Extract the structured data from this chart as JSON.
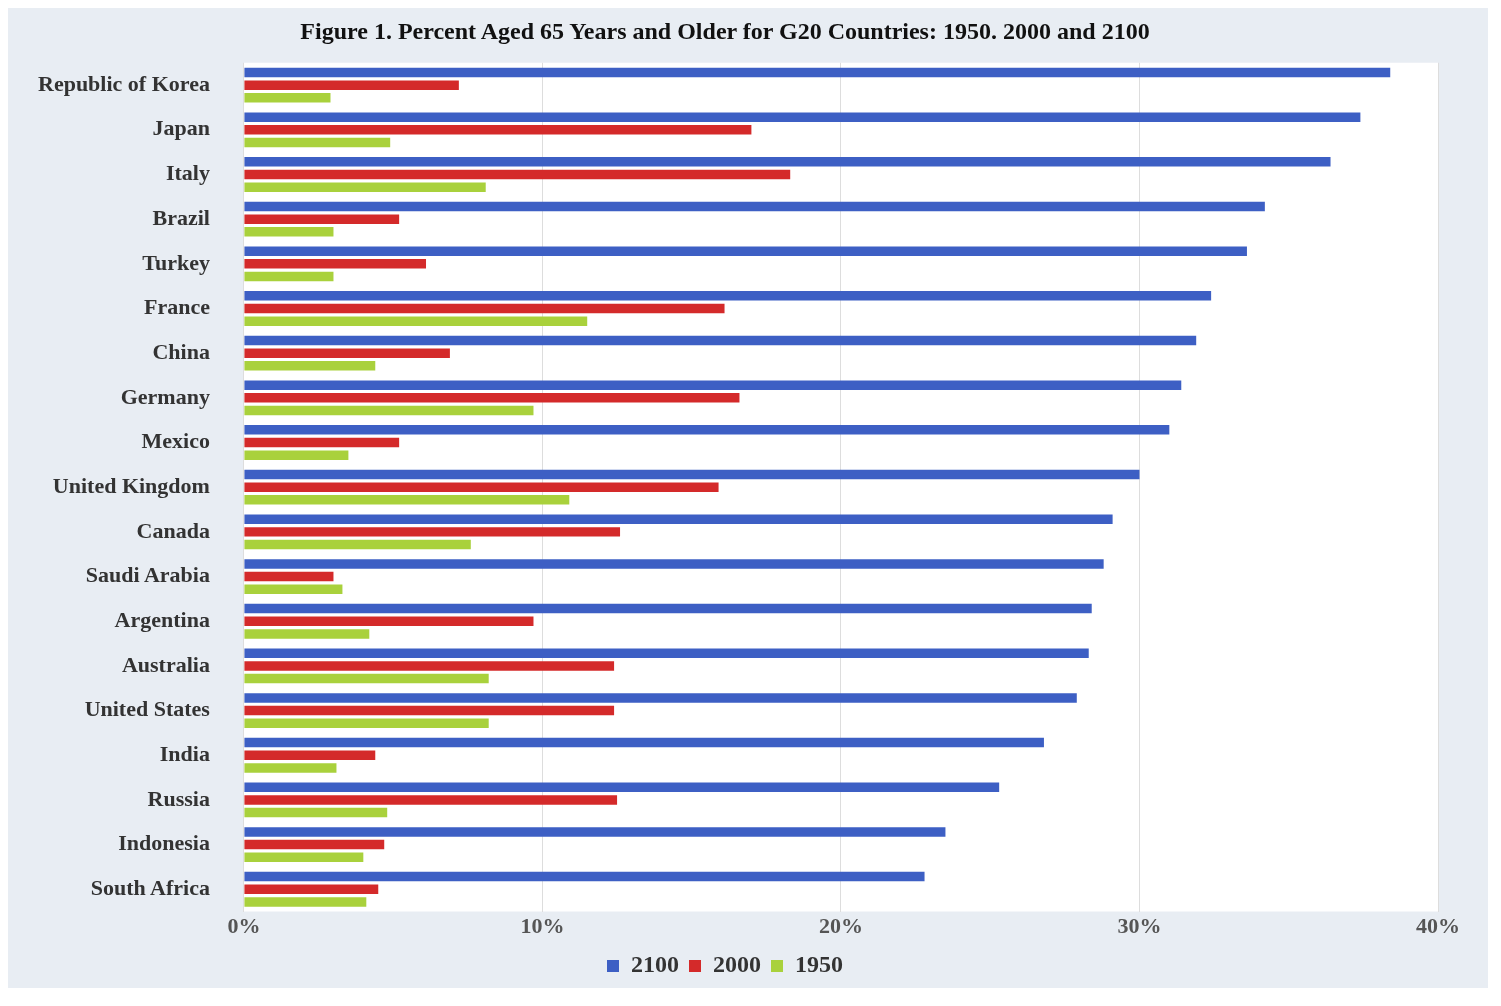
{
  "chart_data": {
    "type": "bar",
    "orientation": "horizontal",
    "title": "Figure 1. Percent Aged 65 Years and Older for G20 Countries: 1950. 2000 and 2100",
    "categories": [
      "Republic of Korea",
      "Japan",
      "Italy",
      "Brazil",
      "Turkey",
      "France",
      "China",
      "Germany",
      "Mexico",
      "United Kingdom",
      "Canada",
      "Saudi Arabia",
      "Argentina",
      "Australia",
      "United States",
      "India",
      "Russia",
      "Indonesia",
      "South Africa"
    ],
    "series": [
      {
        "name": "2100",
        "color": "#3d5fc4",
        "values": [
          38.4,
          37.4,
          36.4,
          34.2,
          33.6,
          32.4,
          31.9,
          31.4,
          31.0,
          30.0,
          29.1,
          28.8,
          28.4,
          28.3,
          27.9,
          26.8,
          25.3,
          23.5,
          22.8
        ]
      },
      {
        "name": "2000",
        "color": "#d42a2a",
        "values": [
          7.2,
          17.0,
          18.3,
          5.2,
          6.1,
          16.1,
          6.9,
          16.6,
          5.2,
          15.9,
          12.6,
          3.0,
          9.7,
          12.4,
          12.4,
          4.4,
          12.5,
          4.7,
          4.5
        ]
      },
      {
        "name": "1950",
        "color": "#a9d13c",
        "values": [
          2.9,
          4.9,
          8.1,
          3.0,
          3.0,
          11.5,
          4.4,
          9.7,
          3.5,
          10.9,
          7.6,
          3.3,
          4.2,
          8.2,
          8.2,
          3.1,
          4.8,
          4.0,
          4.1
        ]
      }
    ],
    "xlim": [
      0,
      40
    ],
    "xticks": [
      {
        "value": 0,
        "label": "0%"
      },
      {
        "value": 10,
        "label": "10%"
      },
      {
        "value": 20,
        "label": "20%"
      },
      {
        "value": 30,
        "label": "30%"
      },
      {
        "value": 40,
        "label": "40%"
      }
    ],
    "grid": "x",
    "legend": "bottom"
  }
}
